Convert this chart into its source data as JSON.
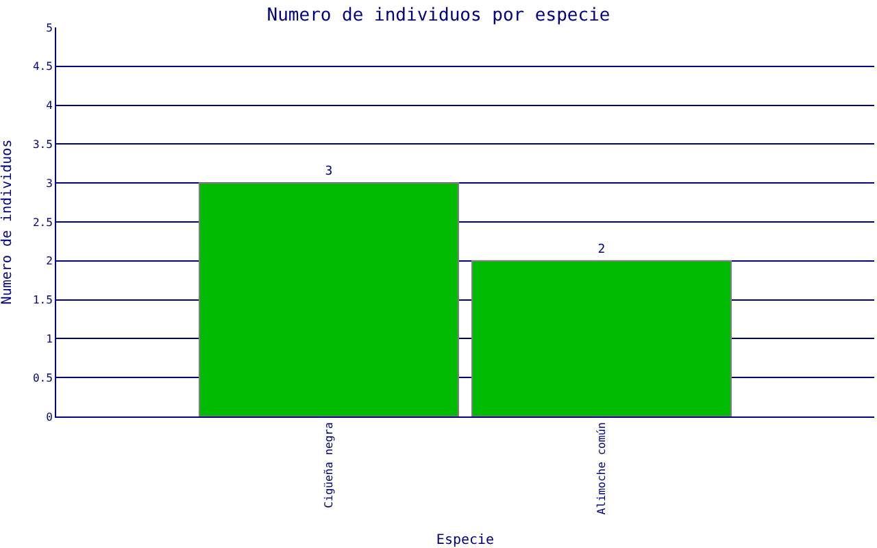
{
  "chart_data": {
    "type": "bar",
    "title": "Numero de individuos por especie",
    "xlabel": "Especie",
    "ylabel": "Numero de individuos",
    "categories": [
      "Cigüeña negra",
      "Alimoche común"
    ],
    "values": [
      3,
      2
    ],
    "color": "#00bb00",
    "data_labels": true,
    "ylim": [
      0,
      5
    ],
    "yticks": [
      0,
      0.5,
      1,
      1.5,
      2,
      2.5,
      3,
      3.5,
      4,
      4.5,
      5
    ],
    "grid": "y"
  }
}
